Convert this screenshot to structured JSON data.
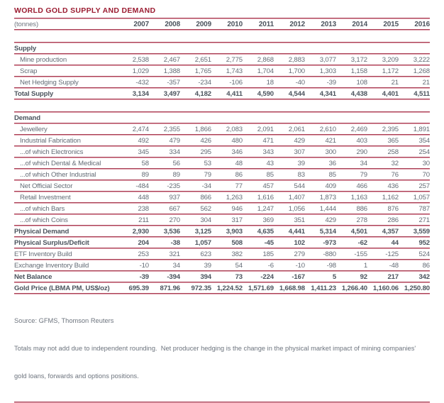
{
  "title": "WORLD GOLD SUPPLY AND DEMAND",
  "columns": {
    "unit_label": "(tonnes)",
    "years": [
      "2007",
      "2008",
      "2009",
      "2010",
      "2011",
      "2012",
      "2013",
      "2014",
      "2015",
      "2016"
    ]
  },
  "table": {
    "sections": [
      {
        "header": "Supply",
        "rows": [
          {
            "label": "Mine production",
            "indent": true,
            "bold": false,
            "values": [
              "2,538",
              "2,467",
              "2,651",
              "2,775",
              "2,868",
              "2,883",
              "3,077",
              "3,172",
              "3,209",
              "3,222"
            ]
          },
          {
            "label": "Scrap",
            "indent": true,
            "bold": false,
            "values": [
              "1,029",
              "1,388",
              "1,765",
              "1,743",
              "1,704",
              "1,700",
              "1,303",
              "1,158",
              "1,172",
              "1,268"
            ]
          },
          {
            "label": "Net Hedging Supply",
            "indent": true,
            "bold": false,
            "values": [
              "-432",
              "-357",
              "-234",
              "-106",
              "18",
              "-40",
              "-39",
              "108",
              "21",
              "21"
            ]
          },
          {
            "label": "Total Supply",
            "indent": false,
            "bold": true,
            "values": [
              "3,134",
              "3,497",
              "4,182",
              "4,411",
              "4,590",
              "4,544",
              "4,341",
              "4,438",
              "4,401",
              "4,511"
            ]
          }
        ]
      },
      {
        "header": "Demand",
        "rows": [
          {
            "label": "Jewellery",
            "indent": true,
            "bold": false,
            "values": [
              "2,474",
              "2,355",
              "1,866",
              "2,083",
              "2,091",
              "2,061",
              "2,610",
              "2,469",
              "2,395",
              "1,891"
            ]
          },
          {
            "label": "Industrial Fabrication",
            "indent": true,
            "bold": false,
            "values": [
              "492",
              "479",
              "426",
              "480",
              "471",
              "429",
              "421",
              "403",
              "365",
              "354"
            ]
          },
          {
            "label": "...of which Electronics",
            "indent": true,
            "bold": false,
            "values": [
              "345",
              "334",
              "295",
              "346",
              "343",
              "307",
              "300",
              "290",
              "258",
              "254"
            ]
          },
          {
            "label": "...of which Dental & Medical",
            "indent": true,
            "bold": false,
            "values": [
              "58",
              "56",
              "53",
              "48",
              "43",
              "39",
              "36",
              "34",
              "32",
              "30"
            ]
          },
          {
            "label": "...of which Other Industrial",
            "indent": true,
            "bold": false,
            "values": [
              "89",
              "89",
              "79",
              "86",
              "85",
              "83",
              "85",
              "79",
              "76",
              "70"
            ]
          },
          {
            "label": "Net Official Sector",
            "indent": true,
            "bold": false,
            "values": [
              "-484",
              "-235",
              "-34",
              "77",
              "457",
              "544",
              "409",
              "466",
              "436",
              "257"
            ]
          },
          {
            "label": "Retail Investment",
            "indent": true,
            "bold": false,
            "values": [
              "448",
              "937",
              "866",
              "1,263",
              "1,616",
              "1,407",
              "1,873",
              "1,163",
              "1,162",
              "1,057"
            ]
          },
          {
            "label": "...of which Bars",
            "indent": true,
            "bold": false,
            "values": [
              "238",
              "667",
              "562",
              "946",
              "1,247",
              "1,056",
              "1,444",
              "886",
              "876",
              "787"
            ]
          },
          {
            "label": "...of which Coins",
            "indent": true,
            "bold": false,
            "values": [
              "211",
              "270",
              "304",
              "317",
              "369",
              "351",
              "429",
              "278",
              "286",
              "271"
            ]
          },
          {
            "label": "Physical Demand",
            "indent": false,
            "bold": true,
            "values": [
              "2,930",
              "3,536",
              "3,125",
              "3,903",
              "4,635",
              "4,441",
              "5,314",
              "4,501",
              "4,357",
              "3,559"
            ]
          },
          {
            "label": "Physical Surplus/Deficit",
            "indent": false,
            "bold": true,
            "values": [
              "204",
              "-38",
              "1,057",
              "508",
              "-45",
              "102",
              "-973",
              "-62",
              "44",
              "952"
            ]
          },
          {
            "label": "ETF Inventory Build",
            "indent": false,
            "bold": false,
            "values": [
              "253",
              "321",
              "623",
              "382",
              "185",
              "279",
              "-880",
              "-155",
              "-125",
              "524"
            ]
          },
          {
            "label": "Exchange Inventory Build",
            "indent": false,
            "bold": false,
            "values": [
              "-10",
              "34",
              "39",
              "54",
              "-6",
              "-10",
              "-98",
              "1",
              "-48",
              "86"
            ]
          },
          {
            "label": "Net Balance",
            "indent": false,
            "bold": true,
            "values": [
              "-39",
              "-394",
              "394",
              "73",
              "-224",
              "-167",
              "5",
              "92",
              "217",
              "342"
            ]
          },
          {
            "label": "Gold Price (LBMA PM, US$/oz)",
            "indent": false,
            "bold": true,
            "values": [
              "695.39",
              "871.96",
              "972.35",
              "1,224.52",
              "1,571.69",
              "1,668.98",
              "1,411.23",
              "1,266.40",
              "1,160.06",
              "1,250.80"
            ]
          }
        ]
      }
    ]
  },
  "footer": {
    "source": "Source: GFMS, Thomson Reuters",
    "note_line1": "Totals may not add due to independent rounding.  Net producer hedging is the change in the physical market impact of mining companies'",
    "note_line2": "gold loans, forwards and options positions."
  },
  "colors": {
    "title": "#9b1c31",
    "rule_dark": "#a93e54",
    "rule_light": "#dfa2ae",
    "text": "#646c76",
    "text_bold": "#4b535d"
  }
}
